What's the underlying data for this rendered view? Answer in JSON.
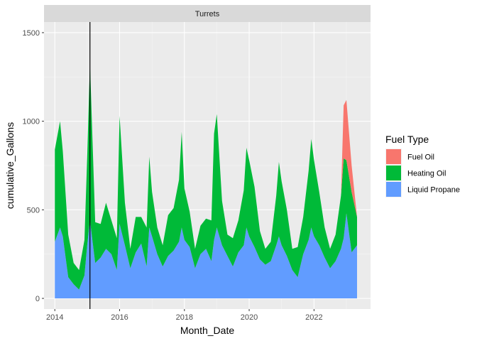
{
  "chart_data": {
    "type": "area",
    "stacked": true,
    "facet_label": "Turrets",
    "xlabel": "Month_Date",
    "ylabel": "cumulative_Gallons",
    "xlim": [
      "2013-09-01",
      "2023-09-30"
    ],
    "ylim": [
      -60,
      1560
    ],
    "x_ticks": [
      "2014",
      "2016",
      "2018",
      "2020",
      "2022"
    ],
    "y_ticks": [
      0,
      500,
      1000,
      1500
    ],
    "grid": true,
    "legend": {
      "title": "Fuel Type",
      "placement": "right"
    },
    "reference_line": {
      "x": "2015-02-01"
    },
    "x": [
      "2014-01",
      "2014-03",
      "2014-04",
      "2014-06",
      "2014-08",
      "2014-10",
      "2014-12",
      "2015-01",
      "2015-02",
      "2015-04",
      "2015-06",
      "2015-08",
      "2015-10",
      "2015-12",
      "2016-01",
      "2016-03",
      "2016-05",
      "2016-07",
      "2016-09",
      "2016-11",
      "2016-12",
      "2017-01",
      "2017-03",
      "2017-05",
      "2017-07",
      "2017-09",
      "2017-11",
      "2017-12",
      "2018-01",
      "2018-03",
      "2018-05",
      "2018-07",
      "2018-09",
      "2018-11",
      "2018-12",
      "2019-01",
      "2019-03",
      "2019-05",
      "2019-07",
      "2019-09",
      "2019-11",
      "2019-12",
      "2020-01",
      "2020-03",
      "2020-05",
      "2020-07",
      "2020-09",
      "2020-11",
      "2020-12",
      "2021-01",
      "2021-03",
      "2021-05",
      "2021-07",
      "2021-09",
      "2021-11",
      "2021-12",
      "2022-01",
      "2022-03",
      "2022-05",
      "2022-07",
      "2022-09",
      "2022-11",
      "2022-12",
      "2023-01",
      "2023-03",
      "2023-05"
    ],
    "series": [
      {
        "name": "Liquid Propane",
        "color": "#619CFF",
        "values": [
          320,
          400,
          350,
          120,
          80,
          50,
          130,
          300,
          440,
          200,
          230,
          280,
          250,
          160,
          420,
          300,
          170,
          260,
          310,
          180,
          400,
          350,
          250,
          180,
          240,
          270,
          320,
          400,
          330,
          290,
          170,
          250,
          280,
          210,
          330,
          400,
          300,
          240,
          180,
          260,
          300,
          400,
          350,
          290,
          220,
          190,
          210,
          300,
          350,
          300,
          240,
          160,
          120,
          250,
          330,
          400,
          350,
          300,
          230,
          170,
          210,
          280,
          340,
          480,
          260,
          300
        ]
      },
      {
        "name": "Heating Oil",
        "color": "#00BA38",
        "values": [
          520,
          600,
          480,
          240,
          120,
          110,
          200,
          500,
          890,
          230,
          190,
          260,
          190,
          180,
          610,
          240,
          110,
          200,
          150,
          220,
          400,
          250,
          150,
          120,
          230,
          240,
          350,
          540,
          290,
          200,
          110,
          160,
          170,
          230,
          600,
          640,
          250,
          120,
          160,
          180,
          310,
          450,
          430,
          340,
          160,
          90,
          110,
          280,
          420,
          360,
          260,
          120,
          170,
          210,
          390,
          500,
          430,
          300,
          170,
          110,
          150,
          300,
          450,
          300,
          340,
          160
        ]
      },
      {
        "name": "Fuel Oil",
        "color": "#F8766D",
        "values": [
          0,
          0,
          0,
          0,
          0,
          0,
          0,
          0,
          0,
          0,
          0,
          0,
          0,
          0,
          0,
          0,
          0,
          0,
          0,
          0,
          0,
          0,
          0,
          0,
          0,
          0,
          0,
          0,
          0,
          0,
          0,
          0,
          0,
          0,
          0,
          0,
          0,
          0,
          0,
          0,
          0,
          0,
          0,
          0,
          0,
          0,
          0,
          0,
          0,
          0,
          0,
          0,
          0,
          0,
          0,
          0,
          0,
          0,
          0,
          0,
          0,
          0,
          300,
          340,
          150,
          0
        ]
      }
    ]
  },
  "colors": {
    "panel": "#EBEBEB",
    "grid_major": "#FFFFFF",
    "strip": "#D9D9D9"
  }
}
